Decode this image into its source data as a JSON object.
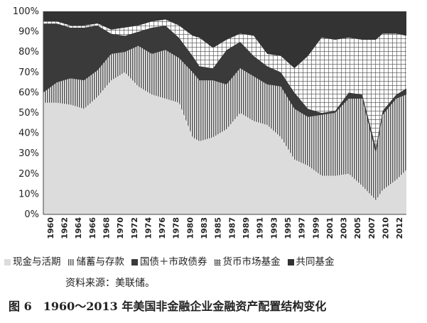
{
  "chart_data": {
    "type": "area",
    "stacked": true,
    "x_tick_labels": [
      "1960",
      "1962",
      "1964",
      "1966",
      "1968",
      "1970",
      "1972",
      "1974",
      "1976",
      "1978",
      "1980",
      "1983",
      "1985",
      "1987",
      "1989",
      "1991",
      "1993",
      "1995",
      "1997",
      "1999",
      "2001",
      "2003",
      "2005",
      "2007",
      "2010",
      "2012"
    ],
    "x": [
      1960,
      1962,
      1964,
      1966,
      1968,
      1970,
      1972,
      1974,
      1976,
      1978,
      1980,
      1982,
      1983,
      1985,
      1987,
      1989,
      1991,
      1993,
      1995,
      1997,
      1999,
      2001,
      2003,
      2005,
      2007,
      2009,
      2010,
      2012,
      2013.5
    ],
    "y_ticks": [
      "0%",
      "10%",
      "20%",
      "30%",
      "40%",
      "50%",
      "60%",
      "70%",
      "80%",
      "90%",
      "100%"
    ],
    "ylim": [
      0,
      100
    ],
    "series": [
      {
        "name": "现金与活期",
        "color": "#dcdcdc",
        "pattern": "solid",
        "values": [
          55,
          55,
          54,
          52,
          58,
          66,
          70,
          63,
          59,
          57,
          55,
          38,
          36,
          38,
          42,
          50,
          46,
          44,
          38,
          27,
          24,
          19,
          19,
          20,
          14,
          7,
          12,
          17,
          22
        ]
      },
      {
        "name": "储蓄与存款",
        "color": "#7a7a7a",
        "pattern": "vertical-lines",
        "values": [
          5,
          10,
          13,
          14,
          13,
          13,
          10,
          20,
          20,
          24,
          22,
          32,
          30,
          28,
          22,
          22,
          22,
          20,
          25,
          25,
          24,
          30,
          31,
          37,
          43,
          23,
          37,
          40,
          37
        ]
      },
      {
        "name": "国债＋市政债券",
        "color": "#3a3a3a",
        "pattern": "solid",
        "values": [
          34,
          29,
          25,
          26,
          22,
          10,
          8,
          7,
          13,
          12,
          10,
          8,
          7,
          6,
          17,
          13,
          10,
          9,
          7,
          8,
          4,
          1,
          1,
          3,
          2,
          3,
          2,
          2,
          3
        ]
      },
      {
        "name": "货币市场基金",
        "color": "#999999",
        "pattern": "grid",
        "values": [
          1,
          1,
          1,
          1,
          1,
          2,
          4,
          3,
          3,
          3,
          6,
          10,
          14,
          10,
          5,
          4,
          10,
          6,
          8,
          12,
          26,
          37,
          35,
          27,
          27,
          53,
          38,
          30,
          26
        ]
      },
      {
        "name": "共同基金",
        "color": "#333333",
        "pattern": "solid",
        "values": [
          5,
          5,
          7,
          7,
          6,
          9,
          8,
          7,
          5,
          4,
          7,
          12,
          13,
          18,
          14,
          11,
          12,
          21,
          22,
          28,
          22,
          13,
          14,
          13,
          14,
          14,
          11,
          11,
          12
        ]
      }
    ]
  },
  "source_text": "资料来源：美联储。",
  "caption_text": "图 6　1960～2013 年美国非金融企业金融资产配置结构变化"
}
